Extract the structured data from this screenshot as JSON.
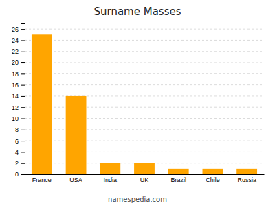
{
  "chart_data": {
    "type": "bar",
    "title": "Surname Masses",
    "categories": [
      "France",
      "USA",
      "India",
      "UK",
      "Brazil",
      "Chile",
      "Russia"
    ],
    "values": [
      25,
      14,
      2,
      2,
      1,
      1,
      1
    ],
    "color": "#FFA500",
    "ylim": [
      0,
      27
    ],
    "yticks": [
      0,
      2,
      4,
      6,
      8,
      10,
      12,
      14,
      16,
      18,
      20,
      22,
      24,
      26
    ],
    "grid": true,
    "annotations": [
      "namespedia.com"
    ]
  }
}
